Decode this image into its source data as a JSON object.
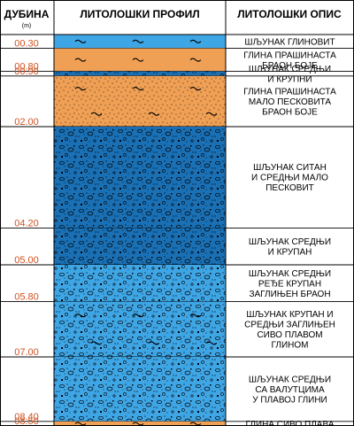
{
  "headers": {
    "depth": "ДУБИНА",
    "depth_units": "(m)",
    "profile": "ЛИТОЛОШКИ ПРОФИЛ",
    "description": "ЛИТОЛОШКИ ОПИС"
  },
  "colors": {
    "gravel": "#1a70b5",
    "gravel_light": "#3fa6e6",
    "clay": "#f0a055",
    "depth_text": "#d0521f"
  },
  "layers": [
    {
      "bottom_depth": "00.30",
      "lines": [
        "ШЉУНАК ГЛИНОВИТ"
      ],
      "fill": "gravel_light",
      "pattern": "clay-wave"
    },
    {
      "bottom_depth": "00.80",
      "lines": [
        "ГЛИНА ПРАШИНАСТА",
        "БРАОН БОЈЕ"
      ],
      "fill": "clay",
      "pattern": "clay-wave"
    },
    {
      "bottom_depth": "00.90",
      "lines": [
        "ШЉУНАК СРЕДЊИ",
        "И КРУПНИ"
      ],
      "fill": "gravel",
      "pattern": "gravel"
    },
    {
      "bottom_depth": "02.00",
      "lines": [
        "ГЛИНА ПРАШИНАСТА",
        "МАЛО ПЕСКОВИТА",
        "БРАОН БОЈЕ"
      ],
      "fill": "clay",
      "pattern": "sandy-clay"
    },
    {
      "bottom_depth": "04.20",
      "lines": [
        "ШЉУНАК СИТАН",
        "И СРЕДЊИ МАЛО",
        "ПЕСКОВИТ"
      ],
      "fill": "gravel",
      "pattern": "gravel"
    },
    {
      "bottom_depth": "05.00",
      "lines": [
        "ШЉУНАК СРЕДЊИ",
        "И КРУПАН"
      ],
      "fill": "gravel",
      "pattern": "gravel"
    },
    {
      "bottom_depth": "05.80",
      "lines": [
        "ШЉУНАК СРЕДЊИ",
        "РЕЂЕ  КРУПАН",
        "ЗАГЛИЊЕН БРАОН"
      ],
      "fill": "gravel_light",
      "pattern": "gravel"
    },
    {
      "bottom_depth": "07.00",
      "lines": [
        "ШЉУНАК  КРУПАН И",
        "СРЕДЊИ ЗАГЛИЊЕН",
        "СИВО ПЛАВОМ",
        "ГЛИНОМ"
      ],
      "fill": "gravel_light",
      "pattern": "gravel-clay"
    },
    {
      "bottom_depth": "08.40",
      "lines": [
        "ШЉУНАК СРЕДЊИ",
        "СА ВАЛУТЦИМА",
        "У ПЛАВОЈ ГЛИНИ"
      ],
      "fill": "gravel_light",
      "pattern": "gravel"
    },
    {
      "bottom_depth": "08.50",
      "lines": [
        "ГЛИНА СИВО ПЛАВА"
      ],
      "fill": "clay",
      "pattern": "clay-wave"
    }
  ]
}
